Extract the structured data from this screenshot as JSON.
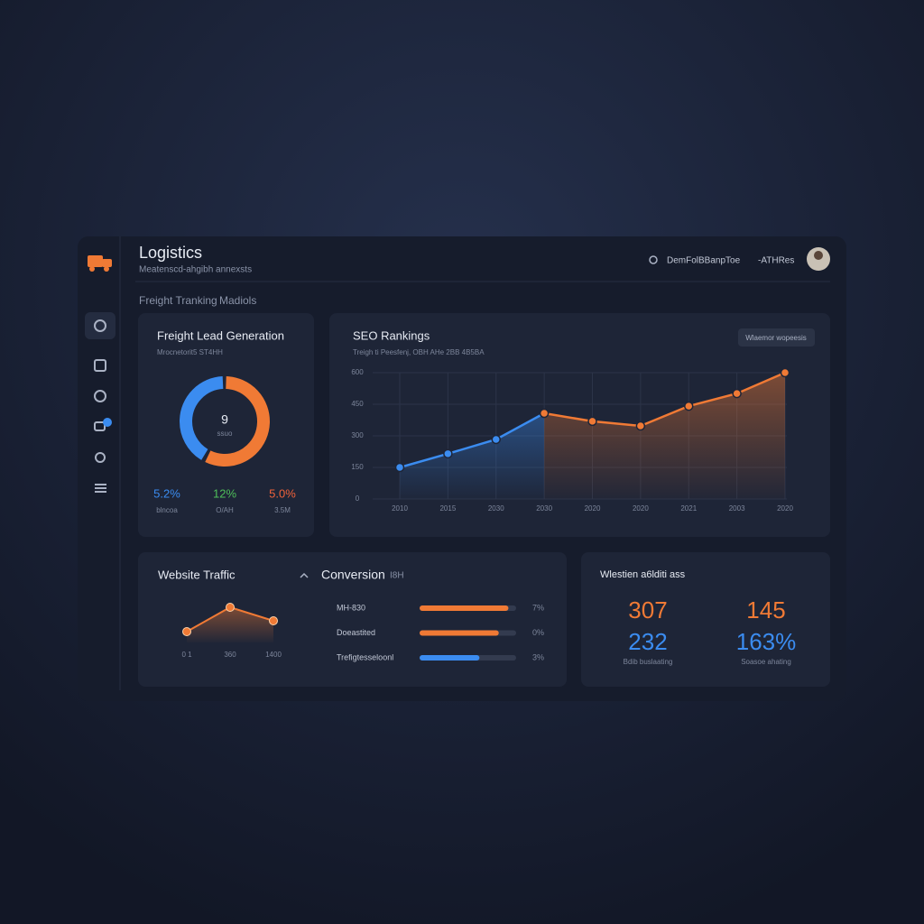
{
  "header": {
    "title": "Logistics",
    "subtitle": "Meatenscd-ahgibh annexsts",
    "user": "DemFolBBanpToe",
    "status": "-ATHRes"
  },
  "breadcrumb": [
    "Freight Tranking",
    "Madiols"
  ],
  "lead_stats": [
    {
      "value": "5.2%",
      "label": "blncoa",
      "color": "#3b8cf0"
    },
    {
      "value": "12%",
      "label": "O/AH",
      "color": "#4fbf5a"
    },
    {
      "value": "5.0%",
      "label": "3.5M",
      "color": "#f0623a"
    }
  ],
  "seo_button": "Wlaemor wopeesis",
  "conversion": {
    "title": "Conversion",
    "tag": "I8H",
    "rows": [
      {
        "label": "MH-830",
        "value_label": "7%",
        "fill": 92,
        "color": "#f07a35"
      },
      {
        "label": "Doeastited",
        "value_label": "0%",
        "fill": 82,
        "color": "#f07a35"
      },
      {
        "label": "Trefigtesseloonl",
        "value_label": "3%",
        "fill": 62,
        "color": "#3b8cf0"
      }
    ]
  },
  "summary": {
    "title": "Wlestien a6lditi ass",
    "metrics": [
      {
        "value": "307",
        "color": "#f07a35"
      },
      {
        "value": "145",
        "color": "#f07a35"
      },
      {
        "value": "232",
        "color": "#3b8cf0"
      },
      {
        "value": "163%",
        "color": "#3b8cf0"
      }
    ],
    "captions": [
      "Bdib buslaating",
      "Soasoe ahating"
    ]
  },
  "chart_data": [
    {
      "type": "donut",
      "title": "Freight Lead Generation",
      "subtitle": "Mrocnetorit5 ST4HH",
      "center_label": "9",
      "center_sublabel": "ssuo",
      "values": [
        58,
        42
      ],
      "colors": [
        "#f07a35",
        "#3b8cf0"
      ]
    },
    {
      "type": "line",
      "title": "SEO Rankings",
      "subtitle": "Treigh ti Peesfenj, OBH AHe 2BB 4B5BA",
      "categories": [
        "2010",
        "2015",
        "2030",
        "2030",
        "2020",
        "2020",
        "2021",
        "2003",
        "2020"
      ],
      "series": [
        {
          "color": "#3b8cf0",
          "values": [
            150,
            215,
            283,
            407,
            null,
            null,
            null,
            null,
            null
          ]
        },
        {
          "color": "#f07a35",
          "values": [
            null,
            null,
            null,
            407,
            369,
            347,
            441,
            501,
            600
          ]
        }
      ],
      "ylim": [
        0,
        600
      ],
      "yticks": [
        0,
        150,
        300,
        450,
        600
      ],
      "grid": true
    },
    {
      "type": "line",
      "title": "Website Traffic",
      "categories": [
        "0 1",
        "360",
        "1400"
      ],
      "values": [
        40,
        67,
        52
      ],
      "ylim": [
        0,
        100
      ],
      "color": "#f07a35"
    }
  ]
}
